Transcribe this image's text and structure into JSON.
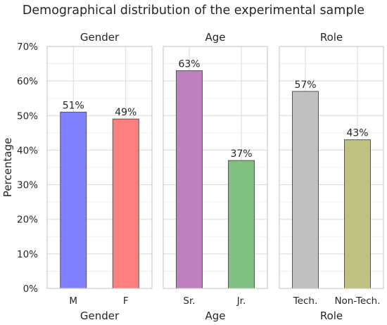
{
  "title": "Demographical distribution of the experimental sample",
  "ylabel": "Percentage",
  "y_ticks": [
    "0%",
    "10%",
    "20%",
    "30%",
    "40%",
    "50%",
    "60%",
    "70%"
  ],
  "chart_data": {
    "type": "bar",
    "title": "Demographical distribution of the experimental sample",
    "ylabel": "Percentage",
    "ylim": [
      0,
      70
    ],
    "y_ticks": [
      0,
      10,
      20,
      30,
      40,
      50,
      60,
      70
    ],
    "y_tick_format": "percent",
    "grid": true,
    "panels": [
      {
        "title": "Gender",
        "xlabel": "Gender",
        "categories": [
          "M",
          "F"
        ],
        "values": [
          51,
          49
        ],
        "labels": [
          "51%",
          "49%"
        ],
        "colors": [
          "#8080ff",
          "#ff7f7f"
        ]
      },
      {
        "title": "Age",
        "xlabel": "Age",
        "categories": [
          "Sr.",
          "Jr."
        ],
        "values": [
          63,
          37
        ],
        "labels": [
          "63%",
          "37%"
        ],
        "colors": [
          "#bf80bf",
          "#80c080"
        ]
      },
      {
        "title": "Role",
        "xlabel": "Role",
        "categories": [
          "Tech.",
          "Non-Tech."
        ],
        "values": [
          57,
          43
        ],
        "labels": [
          "57%",
          "43%"
        ],
        "colors": [
          "#c0c0c0",
          "#c0c080"
        ]
      }
    ]
  }
}
